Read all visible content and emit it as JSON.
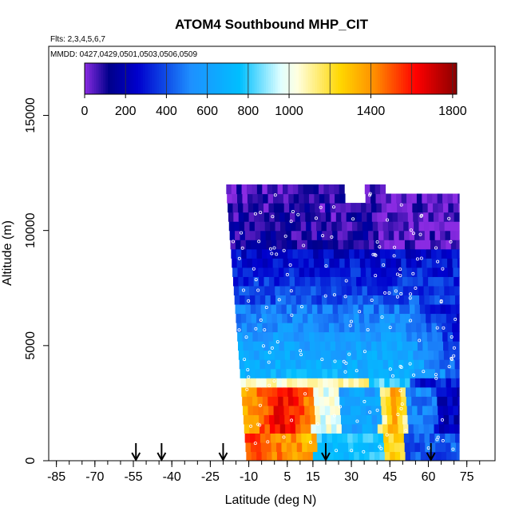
{
  "chart_data": {
    "type": "heatmap",
    "title": "ATOM4 Southbound MHP_CIT",
    "flights_note": "Flts: 2,3,4,5,6,7",
    "dates_note": "MMDD: 0427,0429,0501,0503,0506,0509",
    "xlabel": "Latitude (deg N)",
    "ylabel": "Altitude (m)",
    "xlim": [
      -88,
      86
    ],
    "ylim": [
      0,
      18000
    ],
    "x_ticks": [
      "-85",
      "-70",
      "-55",
      "-40",
      "-25",
      "-10",
      "5",
      "15",
      "30",
      "45",
      "60",
      "75"
    ],
    "x_tick_values": [
      -85,
      -70,
      -55,
      -40,
      -25,
      -10,
      5,
      15,
      30,
      45,
      60,
      75
    ],
    "y_ticks": [
      "0",
      "5000",
      "10000",
      "15000"
    ],
    "y_tick_values": [
      0,
      5000,
      10000,
      15000
    ],
    "colorbar": {
      "ticks": [
        "0",
        "200",
        "400",
        "600",
        "800",
        "1000",
        "1400",
        "1800"
      ],
      "tick_values": [
        0,
        200,
        400,
        600,
        800,
        1000,
        1400,
        1800
      ],
      "range": [
        0,
        1820
      ],
      "colors": [
        "#8a2be2",
        "#00008b",
        "#0000cd",
        "#1e90ff",
        "#00bfff",
        "#e0ffff",
        "#ffffe0",
        "#ffd700",
        "#ff8c00",
        "#ff0000",
        "#8b0000"
      ]
    },
    "arrow_latitudes": [
      -54,
      -44,
      -20,
      20,
      61
    ],
    "profile": {
      "altitude_bands": [
        0,
        500,
        1000,
        1500,
        2000,
        2500,
        3000,
        3500,
        4000,
        4500,
        5000,
        5500,
        6000,
        6500,
        7000,
        7500,
        8000,
        8500,
        9000,
        9500,
        10000,
        10500,
        11000,
        11500,
        12000
      ],
      "latitude_bins": [
        -10,
        -5,
        0,
        5,
        10,
        15,
        20,
        25,
        30,
        35,
        40,
        45,
        50,
        55,
        60,
        65,
        70
      ],
      "left_edge_bottom_lat": -11,
      "left_edge_top_lat": -19,
      "right_edge_lat": 72,
      "top_altitude_north": 11200,
      "top_altitude_south": 11900
    }
  }
}
